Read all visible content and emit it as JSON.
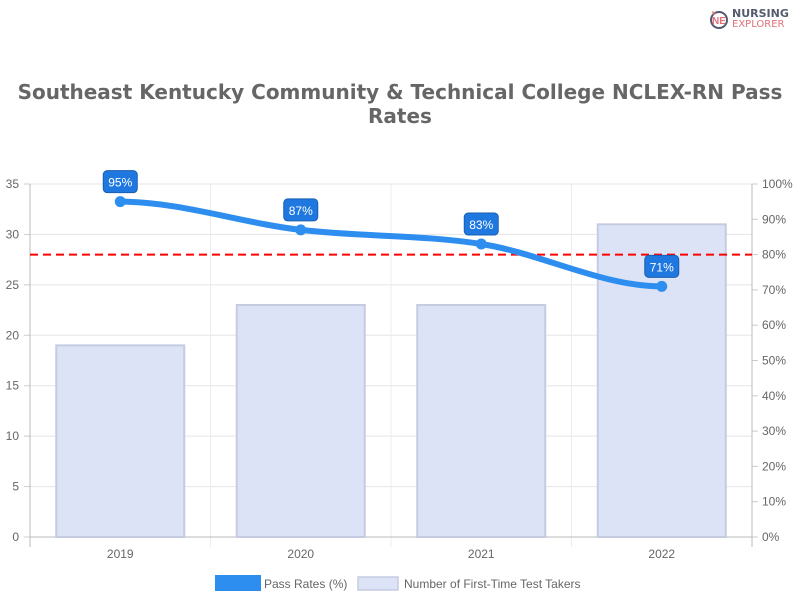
{
  "logo": {
    "line1": "NURSING",
    "line2": "EXPLORER"
  },
  "chart_data": {
    "type": "bar+line",
    "title": "Southeast Kentucky Community & Technical College NCLEX-RN Pass Rates",
    "categories": [
      "2019",
      "2020",
      "2021",
      "2022"
    ],
    "series": [
      {
        "name": "Pass Rates (%)",
        "type": "line",
        "axis": "right",
        "values": [
          95,
          87,
          83,
          71
        ],
        "labels": [
          "95%",
          "87%",
          "83%",
          "71%"
        ],
        "color": "#2e8ef0"
      },
      {
        "name": "Number of First-Time Test Takers",
        "type": "bar",
        "axis": "left",
        "values": [
          19,
          23,
          23,
          31
        ],
        "color": "#dce3f7"
      }
    ],
    "reference_line": {
      "axis": "right",
      "value": 80,
      "color": "#ff0000",
      "style": "dashed"
    },
    "y_left": {
      "ylim": [
        0,
        35
      ],
      "ticks": [
        "0",
        "5",
        "10",
        "15",
        "20",
        "25",
        "30",
        "35"
      ]
    },
    "y_right": {
      "ylim": [
        0,
        100
      ],
      "ticks": [
        "0%",
        "10%",
        "20%",
        "30%",
        "40%",
        "50%",
        "60%",
        "70%",
        "80%",
        "90%",
        "100%"
      ]
    },
    "grid": true,
    "legend": "bottom"
  }
}
